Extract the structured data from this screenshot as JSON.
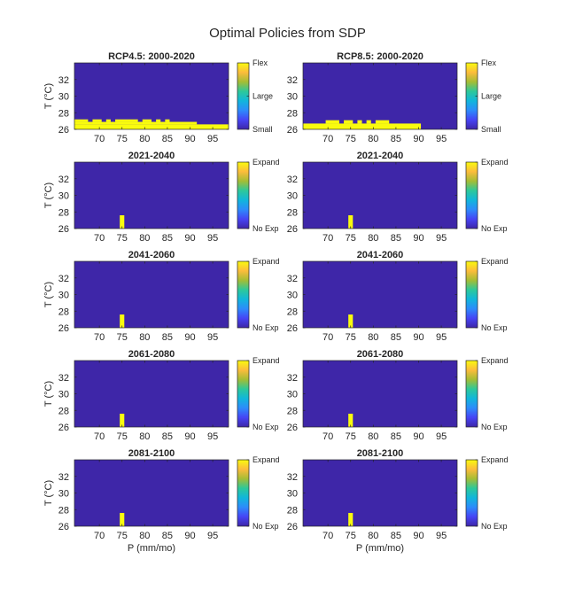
{
  "figure_title": "Optimal Policies from SDP",
  "colors": {
    "dark": "#3e26a8",
    "bright": "#f9fb0e",
    "parula": [
      "#3e26a8",
      "#4644f5",
      "#2d8bfb",
      "#11b6db",
      "#2dc89a",
      "#a5bd34",
      "#fcbc3c",
      "#f9fb0e"
    ]
  },
  "chart_data": [
    {
      "type": "heatmap",
      "title": "RCP4.5: 2000-2020",
      "column": "left",
      "row": 0,
      "xlabel": "",
      "ylabel": "T (°C)",
      "xlim": [
        64.5,
        98.5
      ],
      "ylim": [
        26,
        34
      ],
      "xticks": [
        "70",
        "75",
        "80",
        "85",
        "90",
        "95"
      ],
      "yticks": [
        "26",
        "28",
        "30",
        "32"
      ],
      "colorbar_labels": [
        "Small",
        "Large",
        "Flex"
      ],
      "bright_region": [
        [
          64.5,
          98.5,
          26.0,
          26.6
        ],
        [
          64.5,
          91.5,
          26.6,
          26.9
        ],
        [
          64.5,
          67.5,
          26.9,
          27.2
        ],
        [
          68.5,
          70.5,
          26.9,
          27.2
        ],
        [
          71.5,
          72.5,
          26.9,
          27.2
        ],
        [
          73.5,
          78.5,
          26.9,
          27.2
        ],
        [
          79.5,
          81.5,
          26.9,
          27.2
        ],
        [
          82.5,
          83.5,
          26.9,
          27.2
        ],
        [
          84.5,
          85.5,
          26.9,
          27.2
        ]
      ]
    },
    {
      "type": "heatmap",
      "title": "RCP8.5: 2000-2020",
      "column": "right",
      "row": 0,
      "xlabel": "",
      "ylabel": "",
      "xlim": [
        64.5,
        98.5
      ],
      "ylim": [
        26,
        34
      ],
      "xticks": [
        "70",
        "75",
        "80",
        "85",
        "90",
        "95"
      ],
      "yticks": [
        "26",
        "28",
        "30",
        "32"
      ],
      "colorbar_labels": [
        "Small",
        "Large",
        "Flex"
      ],
      "bright_region": [
        [
          64.5,
          90.5,
          26.0,
          26.7
        ],
        [
          69.5,
          72.5,
          26.7,
          27.1
        ],
        [
          73.5,
          75.5,
          26.7,
          27.1
        ],
        [
          76.5,
          77.5,
          26.7,
          27.1
        ],
        [
          78.5,
          79.5,
          26.7,
          27.1
        ],
        [
          80.5,
          83.5,
          26.7,
          27.1
        ]
      ]
    },
    {
      "type": "heatmap",
      "title": "2021-2040",
      "column": "left",
      "row": 1,
      "xlabel": "",
      "ylabel": "T (°C)",
      "xlim": [
        64.5,
        98.5
      ],
      "ylim": [
        26,
        34
      ],
      "xticks": [
        "70",
        "75",
        "80",
        "85",
        "90",
        "95"
      ],
      "yticks": [
        "26",
        "28",
        "30",
        "32"
      ],
      "colorbar_labels": [
        "No Exp",
        "Expand"
      ],
      "bright_region": [
        [
          74.5,
          75.5,
          26.0,
          27.6
        ]
      ]
    },
    {
      "type": "heatmap",
      "title": "2021-2040",
      "column": "right",
      "row": 1,
      "xlabel": "",
      "ylabel": "",
      "xlim": [
        64.5,
        98.5
      ],
      "ylim": [
        26,
        34
      ],
      "xticks": [
        "70",
        "75",
        "80",
        "85",
        "90",
        "95"
      ],
      "yticks": [
        "26",
        "28",
        "30",
        "32"
      ],
      "colorbar_labels": [
        "No Exp",
        "Expand"
      ],
      "bright_region": [
        [
          74.5,
          75.5,
          26.0,
          27.6
        ]
      ]
    },
    {
      "type": "heatmap",
      "title": "2041-2060",
      "column": "left",
      "row": 2,
      "xlabel": "",
      "ylabel": "T (°C)",
      "xlim": [
        64.5,
        98.5
      ],
      "ylim": [
        26,
        34
      ],
      "xticks": [
        "70",
        "75",
        "80",
        "85",
        "90",
        "95"
      ],
      "yticks": [
        "26",
        "28",
        "30",
        "32"
      ],
      "colorbar_labels": [
        "No Exp",
        "Expand"
      ],
      "bright_region": [
        [
          74.5,
          75.5,
          26.0,
          27.6
        ]
      ]
    },
    {
      "type": "heatmap",
      "title": "2041-2060",
      "column": "right",
      "row": 2,
      "xlabel": "",
      "ylabel": "",
      "xlim": [
        64.5,
        98.5
      ],
      "ylim": [
        26,
        34
      ],
      "xticks": [
        "70",
        "75",
        "80",
        "85",
        "90",
        "95"
      ],
      "yticks": [
        "26",
        "28",
        "30",
        "32"
      ],
      "colorbar_labels": [
        "No Exp",
        "Expand"
      ],
      "bright_region": [
        [
          74.5,
          75.5,
          26.0,
          27.6
        ]
      ]
    },
    {
      "type": "heatmap",
      "title": "2061-2080",
      "column": "left",
      "row": 3,
      "xlabel": "",
      "ylabel": "T (°C)",
      "xlim": [
        64.5,
        98.5
      ],
      "ylim": [
        26,
        34
      ],
      "xticks": [
        "70",
        "75",
        "80",
        "85",
        "90",
        "95"
      ],
      "yticks": [
        "26",
        "28",
        "30",
        "32"
      ],
      "colorbar_labels": [
        "No Exp",
        "Expand"
      ],
      "bright_region": [
        [
          74.5,
          75.5,
          26.0,
          27.6
        ]
      ]
    },
    {
      "type": "heatmap",
      "title": "2061-2080",
      "column": "right",
      "row": 3,
      "xlabel": "",
      "ylabel": "",
      "xlim": [
        64.5,
        98.5
      ],
      "ylim": [
        26,
        34
      ],
      "xticks": [
        "70",
        "75",
        "80",
        "85",
        "90",
        "95"
      ],
      "yticks": [
        "26",
        "28",
        "30",
        "32"
      ],
      "colorbar_labels": [
        "No Exp",
        "Expand"
      ],
      "bright_region": [
        [
          74.5,
          75.5,
          26.0,
          27.6
        ]
      ]
    },
    {
      "type": "heatmap",
      "title": "2081-2100",
      "column": "left",
      "row": 4,
      "xlabel": "P (mm/mo)",
      "ylabel": "T (°C)",
      "xlim": [
        64.5,
        98.5
      ],
      "ylim": [
        26,
        34
      ],
      "xticks": [
        "70",
        "75",
        "80",
        "85",
        "90",
        "95"
      ],
      "yticks": [
        "26",
        "28",
        "30",
        "32"
      ],
      "colorbar_labels": [
        "No Exp",
        "Expand"
      ],
      "bright_region": [
        [
          74.5,
          75.5,
          26.0,
          27.6
        ]
      ]
    },
    {
      "type": "heatmap",
      "title": "2081-2100",
      "column": "right",
      "row": 4,
      "xlabel": "P (mm/mo)",
      "ylabel": "",
      "xlim": [
        64.5,
        98.5
      ],
      "ylim": [
        26,
        34
      ],
      "xticks": [
        "70",
        "75",
        "80",
        "85",
        "90",
        "95"
      ],
      "yticks": [
        "26",
        "28",
        "30",
        "32"
      ],
      "colorbar_labels": [
        "No Exp",
        "Expand"
      ],
      "bright_region": [
        [
          74.5,
          75.5,
          26.0,
          27.6
        ]
      ]
    }
  ]
}
